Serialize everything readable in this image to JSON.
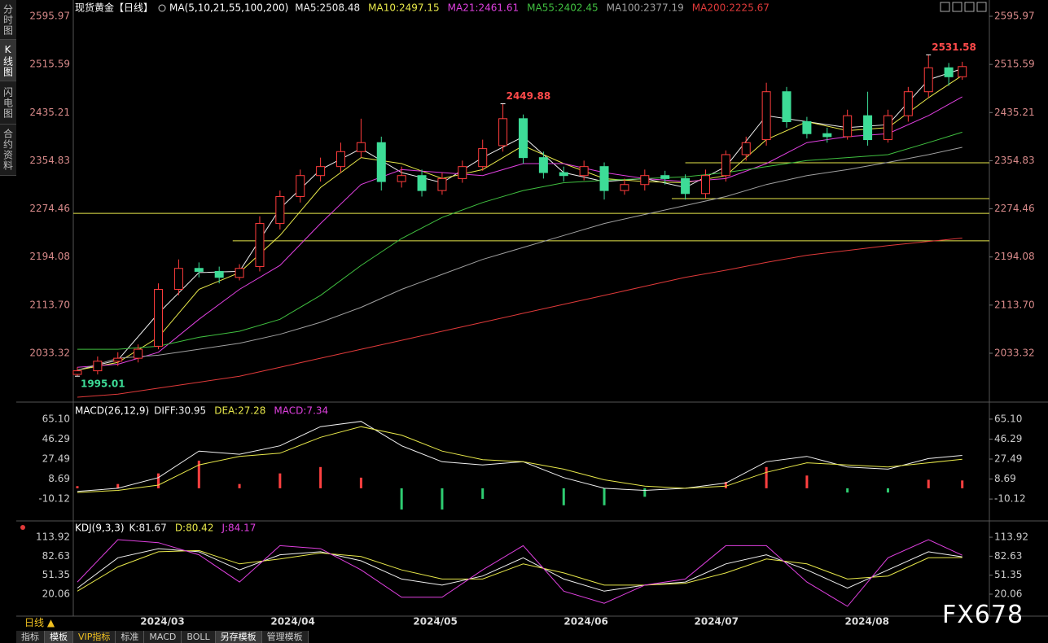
{
  "ui": {
    "sidebar": [
      "分时图",
      "K线图",
      "闪电图",
      "合约资料"
    ],
    "period": "日线 ▲",
    "tabs": [
      "指标",
      "模板",
      "VIP指标",
      "标准",
      "MACD",
      "BOLL",
      "另存模板",
      "管理模板"
    ],
    "watermark": "FX678"
  },
  "chart_data": [
    {
      "type": "candlestick",
      "title": "现货黄金【日线】",
      "legend_title": "MA(5,10,21,55,100,200)",
      "up_color": "#ff3c3c",
      "down_color": "#3ddc97",
      "xlim": [
        -0.6,
        132
      ],
      "ylim": [
        1954.5,
        2612.3
      ],
      "yticks": [
        2595.97,
        2515.59,
        2435.21,
        2354.83,
        2274.46,
        2194.08,
        {
          "value": 2113.7,
          "label": "2113.70"
        },
        2033.32
      ],
      "candles": {
        "x": [
          0,
          3,
          6,
          9,
          12,
          15,
          18,
          21,
          24,
          27,
          30,
          33,
          36,
          39,
          42,
          45,
          48,
          51,
          54,
          57,
          60,
          63,
          66,
          69,
          72,
          75,
          78,
          81,
          84,
          87,
          90,
          93,
          96,
          99,
          102,
          105,
          108,
          111,
          114,
          117,
          120,
          123,
          126,
          129,
          131
        ],
        "open": [
          1998,
          2004,
          2020,
          2025,
          2045,
          2140,
          2175,
          2170,
          2160,
          2178,
          2250,
          2295,
          2330,
          2345,
          2370,
          2385,
          2320,
          2330,
          2305,
          2325,
          2345,
          2380,
          2425,
          2360,
          2335,
          2330,
          2345,
          2305,
          2315,
          2330,
          2325,
          2300,
          2330,
          2365,
          2390,
          2470,
          2420,
          2400,
          2395,
          2430,
          2390,
          2430,
          2470,
          2510,
          2495
        ],
        "high": [
          2010,
          2028,
          2035,
          2048,
          2150,
          2190,
          2185,
          2178,
          2182,
          2262,
          2305,
          2340,
          2360,
          2385,
          2425,
          2395,
          2345,
          2340,
          2335,
          2355,
          2390,
          2449.88,
          2432,
          2370,
          2345,
          2355,
          2352,
          2325,
          2340,
          2338,
          2332,
          2340,
          2372,
          2395,
          2485,
          2478,
          2428,
          2410,
          2440,
          2470,
          2440,
          2478,
          2531.58,
          2518,
          2520
        ],
        "low": [
          1995.01,
          1998,
          2012,
          2018,
          2040,
          2130,
          2160,
          2150,
          2155,
          2170,
          2240,
          2285,
          2320,
          2335,
          2360,
          2305,
          2310,
          2295,
          2298,
          2318,
          2338,
          2370,
          2350,
          2325,
          2320,
          2322,
          2290,
          2298,
          2305,
          2315,
          2290,
          2292,
          2320,
          2355,
          2380,
          2410,
          2392,
          2385,
          2390,
          2380,
          2385,
          2420,
          2460,
          2480,
          2490
        ],
        "close": [
          2004,
          2020,
          2025,
          2040,
          2140,
          2175,
          2170,
          2160,
          2175,
          2250,
          2295,
          2330,
          2345,
          2370,
          2385,
          2320,
          2330,
          2305,
          2325,
          2345,
          2375,
          2425,
          2360,
          2335,
          2330,
          2345,
          2305,
          2315,
          2330,
          2325,
          2300,
          2330,
          2365,
          2385,
          2470,
          2420,
          2400,
          2395,
          2430,
          2390,
          2430,
          2470,
          2510,
          2495,
          2512
        ]
      },
      "x": [
        0,
        6,
        12,
        18,
        24,
        30,
        36,
        42,
        48,
        54,
        60,
        66,
        72,
        78,
        84,
        90,
        96,
        102,
        108,
        114,
        120,
        126,
        131
      ],
      "series": [
        {
          "name": "MA5:2508.48",
          "color": "#f0f0f0",
          "values": [
            2005,
            2022,
            2100,
            2168,
            2170,
            2275,
            2340,
            2375,
            2335,
            2318,
            2360,
            2395,
            2335,
            2320,
            2325,
            2310,
            2345,
            2430,
            2420,
            2410,
            2415,
            2490,
            2508.48
          ]
        },
        {
          "name": "MA10:2497.15",
          "color": "#e8e84a",
          "values": [
            2005,
            2018,
            2060,
            2140,
            2168,
            2230,
            2310,
            2360,
            2350,
            2325,
            2340,
            2380,
            2350,
            2325,
            2320,
            2318,
            2330,
            2390,
            2420,
            2405,
            2410,
            2460,
            2497.15
          ]
        },
        {
          "name": "MA21:2461.61",
          "color": "#e040e0",
          "values": [
            2010,
            2015,
            2035,
            2090,
            2140,
            2180,
            2250,
            2315,
            2340,
            2335,
            2330,
            2350,
            2350,
            2335,
            2325,
            2320,
            2325,
            2350,
            2385,
            2395,
            2400,
            2430,
            2461.61
          ]
        },
        {
          "name": "MA55:2402.45",
          "color": "#40c040",
          "values": [
            2040,
            2040,
            2045,
            2060,
            2070,
            2090,
            2130,
            2180,
            2225,
            2260,
            2285,
            2305,
            2318,
            2322,
            2325,
            2328,
            2335,
            2345,
            2355,
            2360,
            2365,
            2385,
            2402.45
          ]
        },
        {
          "name": "MA100:2377.19",
          "color": "#a0a0a0",
          "values": [
            2005,
            2025,
            2030,
            2040,
            2050,
            2065,
            2085,
            2110,
            2140,
            2165,
            2190,
            2210,
            2230,
            2250,
            2265,
            2280,
            2295,
            2315,
            2330,
            2340,
            2352,
            2365,
            2377.19
          ]
        },
        {
          "name": "MA200:2225.67",
          "color": "#e03a3a",
          "values": [
            1960,
            1965,
            1975,
            1985,
            1995,
            2010,
            2025,
            2040,
            2055,
            2070,
            2085,
            2100,
            2115,
            2130,
            2145,
            2160,
            2172,
            2185,
            2197,
            2205,
            2213,
            2220,
            2225.67
          ]
        }
      ],
      "annotations": [
        {
          "x": 126,
          "y": 2531.58,
          "color": "#ff4a4a",
          "position": "above"
        },
        {
          "x": 63,
          "y": 2449.88,
          "color": "#ff4a4a",
          "position": "above"
        },
        {
          "x": 0,
          "y": 1995.01,
          "color": "#3ddc97",
          "position": "below"
        }
      ],
      "hline_color": "#e6e64a",
      "hlines": [
        {
          "x": 90,
          "y": 2351.3
        },
        {
          "x": 88,
          "y": 2291.5
        },
        {
          "x": -0.6,
          "y": 2267
        },
        {
          "x": 23,
          "y": 2221
        }
      ]
    },
    {
      "type": "line",
      "title": "MACD(26,12,9)",
      "xlim": [
        -0.6,
        132
      ],
      "ylim": [
        -29.2,
        78.85
      ],
      "yticks": [
        {
          "value": 65.1,
          "label": "65.10"
        },
        46.29,
        27.49,
        8.69,
        -10.12
      ],
      "x": [
        0,
        6,
        12,
        18,
        24,
        30,
        36,
        42,
        48,
        54,
        60,
        66,
        72,
        78,
        84,
        90,
        96,
        102,
        108,
        114,
        120,
        126,
        131
      ],
      "series": [
        {
          "name": "DIFF:30.95",
          "color": "#f0f0f0",
          "values": [
            -3,
            0,
            10,
            35,
            32,
            40,
            58,
            63,
            40,
            25,
            22,
            25,
            10,
            0,
            -2,
            0,
            5,
            25,
            30,
            20,
            18,
            28,
            30.95
          ]
        },
        {
          "name": "DEA:27.28",
          "color": "#e8e84a",
          "values": [
            -4,
            -2,
            3,
            22,
            30,
            33,
            48,
            58,
            50,
            35,
            27,
            25,
            18,
            8,
            2,
            0,
            2,
            15,
            24,
            22,
            20,
            24,
            27.28
          ]
        },
        {
          "name": "MACD:7.34",
          "type": "bar",
          "color": "#e040e0",
          "up_color": "#ff4040",
          "down_color": "#2ecc71",
          "values": [
            2,
            4,
            14,
            26,
            4,
            14,
            20,
            10,
            -20,
            -20,
            -10,
            0,
            -16,
            -16,
            -8,
            0,
            6,
            20,
            12,
            -4,
            -4,
            8,
            7.34
          ]
        }
      ]
    },
    {
      "type": "line",
      "title": "KDJ(9,3,3)",
      "xlim": [
        -0.6,
        132
      ],
      "ylim": [
        -16.2,
        136.8
      ],
      "yticks": [
        113.92,
        82.63,
        51.35,
        20.06
      ],
      "xticks": [
        {
          "value": 12.6,
          "label": "2024/03"
        },
        {
          "value": 31.9,
          "label": "2024/04"
        },
        {
          "value": 53,
          "label": "2024/05"
        },
        {
          "value": 75.3,
          "label": "2024/06"
        },
        {
          "value": 94.6,
          "label": "2024/07"
        },
        {
          "value": 116.9,
          "label": "2024/08"
        }
      ],
      "x": [
        0,
        6,
        12,
        18,
        24,
        30,
        36,
        42,
        48,
        54,
        60,
        66,
        72,
        78,
        84,
        90,
        96,
        102,
        108,
        114,
        120,
        126,
        131
      ],
      "series": [
        {
          "name": "K:81.67",
          "color": "#f0f0f0",
          "values": [
            30,
            80,
            95,
            90,
            60,
            85,
            90,
            75,
            45,
            35,
            50,
            80,
            45,
            25,
            35,
            40,
            70,
            85,
            60,
            30,
            60,
            90,
            81.67
          ]
        },
        {
          "name": "D:80.42",
          "color": "#e8e84a",
          "values": [
            25,
            65,
            90,
            92,
            70,
            78,
            88,
            82,
            60,
            45,
            45,
            70,
            55,
            35,
            35,
            38,
            55,
            78,
            70,
            45,
            50,
            80,
            80.42
          ]
        },
        {
          "name": "J:84.17",
          "color": "#e040e0",
          "values": [
            40,
            110,
            105,
            85,
            40,
            100,
            95,
            60,
            15,
            15,
            60,
            100,
            25,
            5,
            35,
            45,
            100,
            100,
            40,
            0,
            80,
            110,
            84.17
          ]
        }
      ]
    }
  ]
}
